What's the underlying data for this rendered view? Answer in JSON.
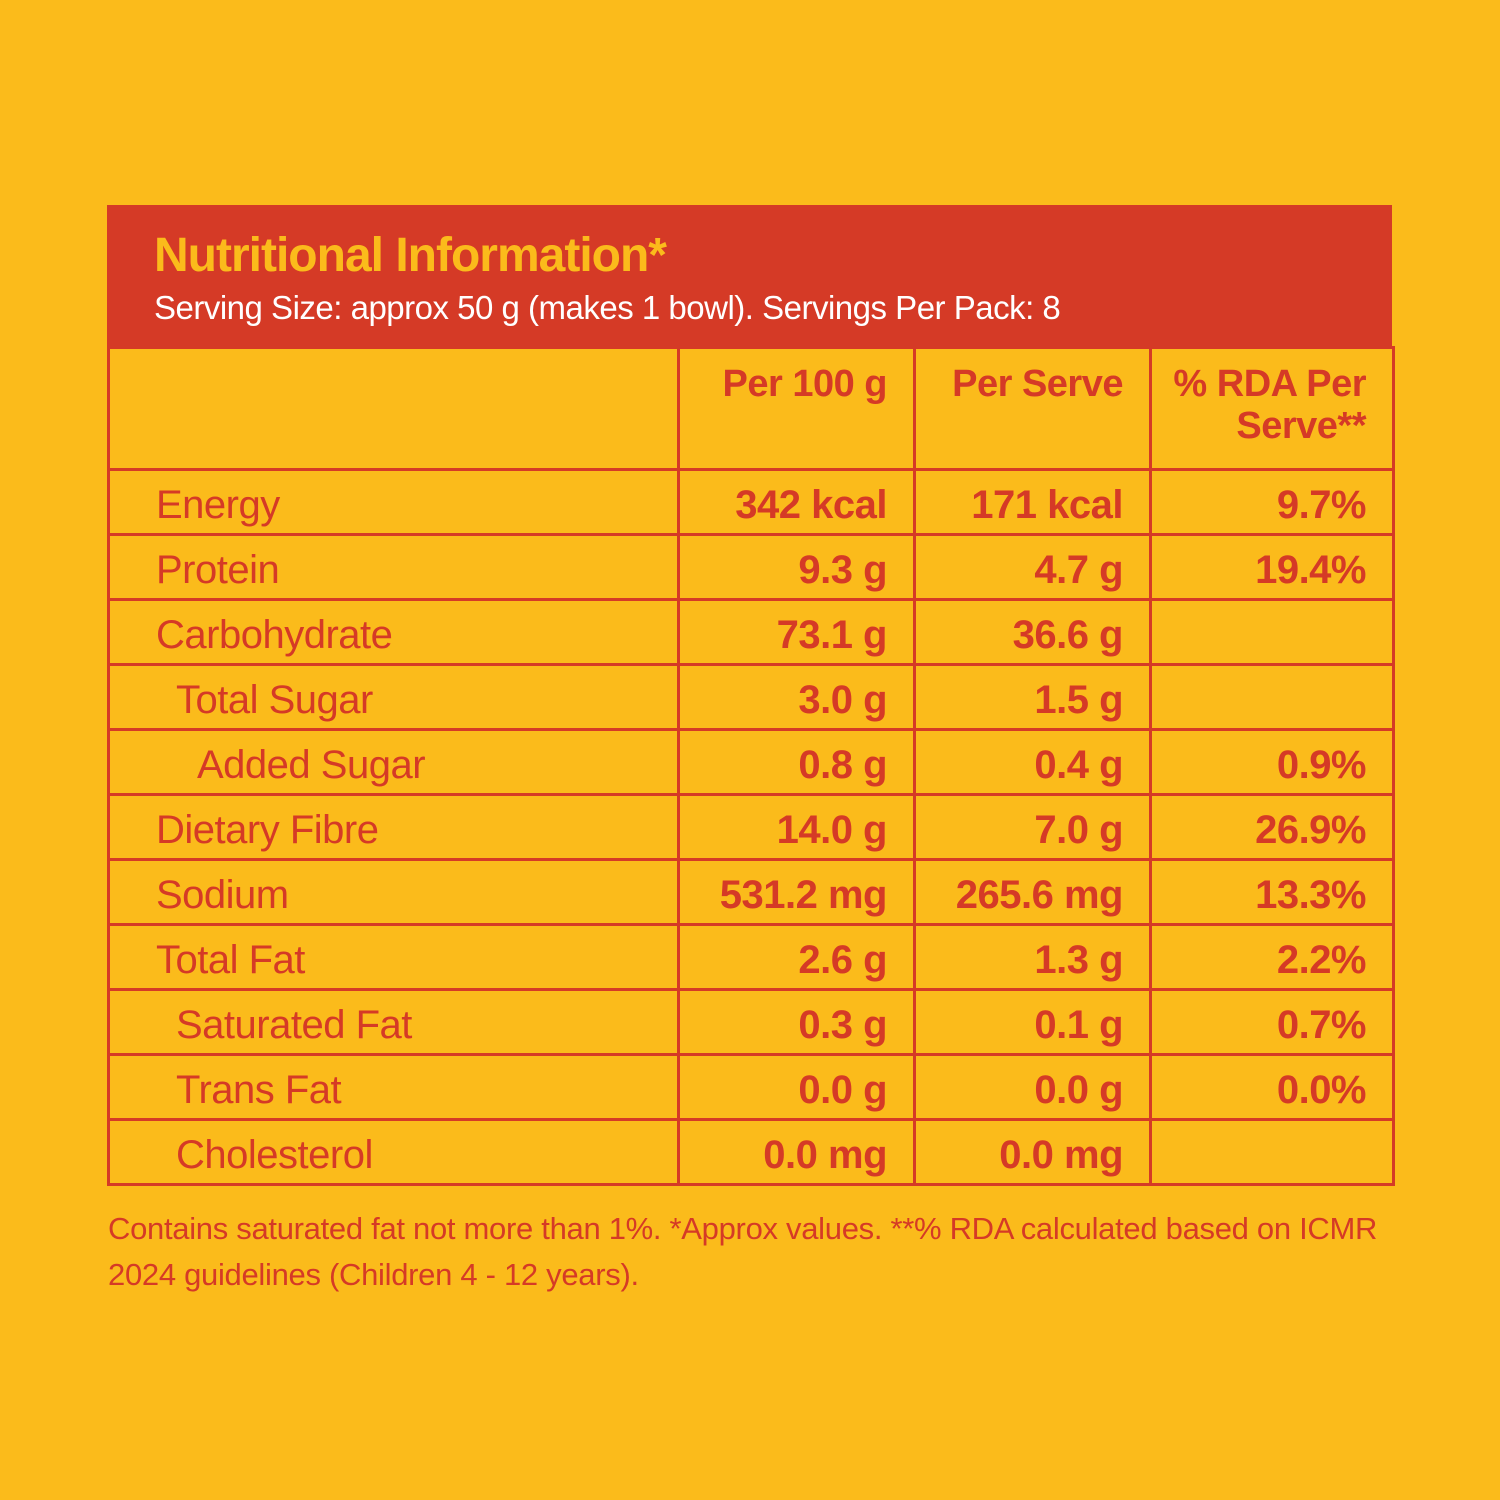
{
  "colors": {
    "background": "#fbbb1b",
    "accent": "#d53a26",
    "subtitle_text": "#ffffff"
  },
  "header": {
    "title": "Nutritional Information*",
    "subtitle": "Serving Size: approx 50 g (makes 1 bowl). Servings Per Pack: 8"
  },
  "table": {
    "columns": {
      "per_100g": "Per 100 g",
      "per_serve": "Per Serve",
      "rda": "% RDA Per Serve**"
    },
    "rows": [
      {
        "name": "Energy",
        "per_100g": "342 kcal",
        "per_serve": "171 kcal",
        "rda": "9.7%"
      },
      {
        "name": "Protein",
        "per_100g": "9.3 g",
        "per_serve": "4.7 g",
        "rda": "19.4%"
      },
      {
        "name": "Carbohydrate",
        "per_100g": "73.1 g",
        "per_serve": "36.6 g",
        "rda": ""
      },
      {
        "name": "Total Sugar",
        "per_100g": "3.0 g",
        "per_serve": "1.5 g",
        "rda": ""
      },
      {
        "name": "Added Sugar",
        "per_100g": "0.8 g",
        "per_serve": "0.4 g",
        "rda": "0.9%"
      },
      {
        "name": "Dietary Fibre",
        "per_100g": "14.0 g",
        "per_serve": "7.0 g",
        "rda": "26.9%"
      },
      {
        "name": "Sodium",
        "per_100g": "531.2 mg",
        "per_serve": "265.6 mg",
        "rda": "13.3%"
      },
      {
        "name": "Total Fat",
        "per_100g": "2.6 g",
        "per_serve": "1.3 g",
        "rda": "2.2%"
      },
      {
        "name": "Saturated Fat",
        "per_100g": "0.3 g",
        "per_serve": "0.1 g",
        "rda": "0.7%"
      },
      {
        "name": "Trans Fat",
        "per_100g": "0.0 g",
        "per_serve": "0.0 g",
        "rda": "0.0%"
      },
      {
        "name": "Cholesterol",
        "per_100g": "0.0 mg",
        "per_serve": "0.0 mg",
        "rda": ""
      }
    ]
  },
  "footnote": "Contains saturated fat not more than 1%. *Approx values. **% RDA calculated based on ICMR 2024 guidelines (Children 4 - 12 years)."
}
